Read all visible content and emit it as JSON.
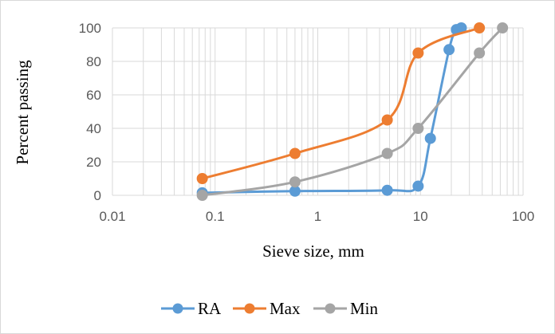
{
  "chart_data": {
    "type": "line",
    "title": "",
    "xlabel": "Sieve size, mm",
    "ylabel": "Percent passing",
    "xscale": "log",
    "xlim": [
      0.01,
      100
    ],
    "ylim": [
      0,
      100
    ],
    "x_ticks": [
      "0.01",
      "0.1",
      "1",
      "10",
      "100"
    ],
    "y_ticks": [
      "0",
      "20",
      "40",
      "60",
      "80",
      "100"
    ],
    "grid": true,
    "legend": "bottom",
    "series": [
      {
        "name": "RA",
        "color": "#5b9bd5",
        "x": [
          0.075,
          0.6,
          4.75,
          9.5,
          12.5,
          19,
          22.4,
          25
        ],
        "y": [
          1.5,
          2.5,
          3,
          5.5,
          34,
          87,
          99,
          100
        ]
      },
      {
        "name": "Max",
        "color": "#ed7d31",
        "x": [
          0.075,
          0.6,
          4.75,
          9.5,
          37.5
        ],
        "y": [
          10,
          25,
          45,
          85,
          100
        ]
      },
      {
        "name": "Min",
        "color": "#a5a5a5",
        "x": [
          0.075,
          0.6,
          4.75,
          9.5,
          37.5,
          63
        ],
        "y": [
          0,
          8,
          25,
          40,
          85,
          100
        ]
      }
    ]
  }
}
